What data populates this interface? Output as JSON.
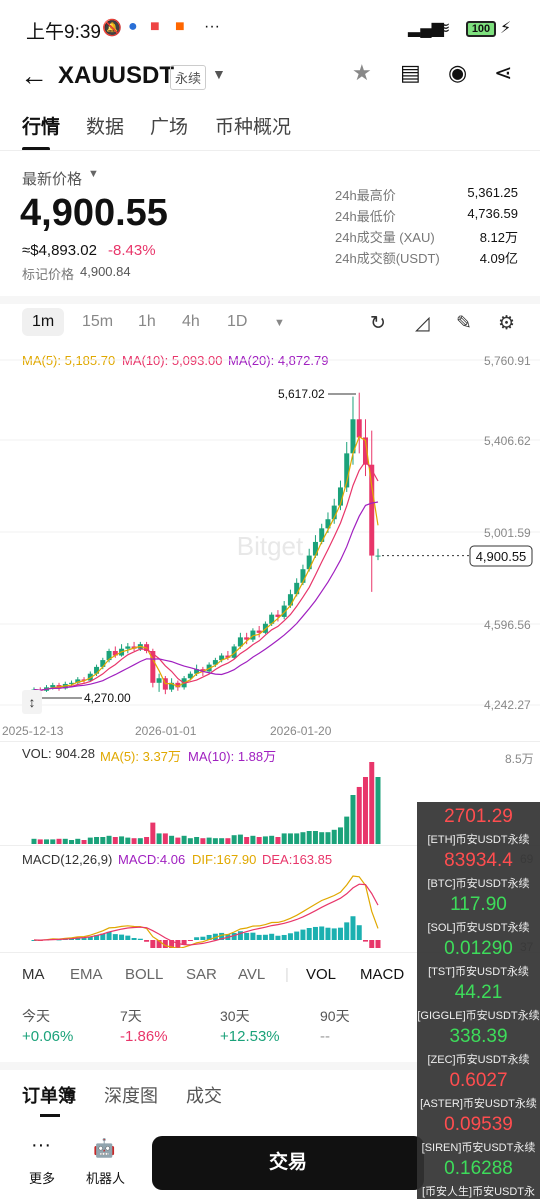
{
  "status": {
    "time": "上午9:39",
    "battery": "100"
  },
  "header": {
    "symbol": "XAUUSDT",
    "badge": "永续"
  },
  "tabs": [
    "行情",
    "数据",
    "广场",
    "币种概况"
  ],
  "price": {
    "label": "最新价格",
    "last": "4,900.55",
    "usd": "≈$4,893.02",
    "change": "-8.43%",
    "mark_label": "标记价格",
    "mark": "4,900.84"
  },
  "stats": [
    {
      "label": "24h最高价",
      "value": "5,361.25"
    },
    {
      "label": "24h最低价",
      "value": "4,736.59"
    },
    {
      "label": "24h成交量 (XAU)",
      "value": "8.12万"
    },
    {
      "label": "24h成交额(USDT)",
      "value": "4.09亿"
    }
  ],
  "timeframes": [
    "1m",
    "15m",
    "1h",
    "4h",
    "1D"
  ],
  "ma_legend": {
    "ma5": "MA(5): 5,185.70",
    "ma10": "MA(10): 5,093.00",
    "ma20": "MA(20): 4,872.79"
  },
  "chart_data": {
    "type": "candlestick",
    "y_ticks": [
      "5,760.91",
      "5,406.62",
      "5,001.59",
      "4,596.56",
      "4,242.27"
    ],
    "x_ticks": [
      "2025-12-13",
      "2026-01-01",
      "2026-01-20"
    ],
    "high_label": "5,617.02",
    "low_label": "4,270.00",
    "current_label": "4,900.55",
    "watermark": "Bitget",
    "ylim": [
      4242.27,
      5760.91
    ],
    "candles": [
      [
        4300,
        4310,
        4285,
        4320
      ],
      [
        4310,
        4305,
        4290,
        4320
      ],
      [
        4305,
        4320,
        4300,
        4330
      ],
      [
        4320,
        4330,
        4310,
        4340
      ],
      [
        4330,
        4315,
        4305,
        4340
      ],
      [
        4315,
        4335,
        4310,
        4345
      ],
      [
        4335,
        4340,
        4325,
        4350
      ],
      [
        4340,
        4355,
        4330,
        4365
      ],
      [
        4355,
        4350,
        4340,
        4365
      ],
      [
        4350,
        4380,
        4345,
        4390
      ],
      [
        4380,
        4410,
        4370,
        4420
      ],
      [
        4410,
        4440,
        4400,
        4450
      ],
      [
        4440,
        4480,
        4430,
        4490
      ],
      [
        4480,
        4460,
        4450,
        4500
      ],
      [
        4460,
        4490,
        4455,
        4510
      ],
      [
        4490,
        4500,
        4470,
        4515
      ],
      [
        4500,
        4490,
        4480,
        4520
      ],
      [
        4490,
        4510,
        4480,
        4520
      ],
      [
        4510,
        4480,
        4470,
        4520
      ],
      [
        4480,
        4340,
        4320,
        4490
      ],
      [
        4340,
        4360,
        4300,
        4380
      ],
      [
        4360,
        4310,
        4290,
        4370
      ],
      [
        4310,
        4340,
        4300,
        4360
      ],
      [
        4340,
        4320,
        4305,
        4350
      ],
      [
        4320,
        4360,
        4310,
        4370
      ],
      [
        4360,
        4380,
        4350,
        4390
      ],
      [
        4380,
        4400,
        4370,
        4420
      ],
      [
        4400,
        4390,
        4370,
        4410
      ],
      [
        4390,
        4420,
        4385,
        4430
      ],
      [
        4420,
        4440,
        4410,
        4450
      ],
      [
        4440,
        4460,
        4430,
        4470
      ],
      [
        4460,
        4450,
        4440,
        4480
      ],
      [
        4450,
        4500,
        4445,
        4510
      ],
      [
        4500,
        4540,
        4490,
        4560
      ],
      [
        4540,
        4530,
        4510,
        4560
      ],
      [
        4530,
        4570,
        4520,
        4580
      ],
      [
        4570,
        4560,
        4540,
        4590
      ],
      [
        4560,
        4600,
        4555,
        4610
      ],
      [
        4600,
        4640,
        4590,
        4650
      ],
      [
        4640,
        4630,
        4610,
        4660
      ],
      [
        4630,
        4680,
        4620,
        4700
      ],
      [
        4680,
        4730,
        4670,
        4750
      ],
      [
        4730,
        4780,
        4720,
        4800
      ],
      [
        4780,
        4840,
        4770,
        4860
      ],
      [
        4840,
        4900,
        4830,
        4930
      ],
      [
        4900,
        4960,
        4890,
        4990
      ],
      [
        4960,
        5020,
        4950,
        5040
      ],
      [
        5020,
        5060,
        5000,
        5090
      ],
      [
        5060,
        5120,
        5040,
        5150
      ],
      [
        5120,
        5200,
        5100,
        5230
      ],
      [
        5200,
        5350,
        5180,
        5400
      ],
      [
        5350,
        5500,
        5300,
        5600
      ],
      [
        5500,
        5420,
        5350,
        5617
      ],
      [
        5420,
        5300,
        5250,
        5500
      ],
      [
        5300,
        4900,
        4740,
        5450
      ],
      [
        4900,
        4900,
        4880,
        4930
      ]
    ]
  },
  "vol_legend": {
    "vol": "VOL: 904.28",
    "ma5": "MA(5): 3.37万",
    "ma10": "MA(10): 1.88万",
    "max": "8.5万"
  },
  "macd_legend": {
    "title": "MACD(12,26,9)",
    "macd": "MACD:4.06",
    "dif": "DIF:167.90",
    "dea": "DEA:163.85",
    "tick_a": "69",
    "tick_b": "37"
  },
  "indicators": [
    "MA",
    "EMA",
    "BOLL",
    "SAR",
    "AVL",
    "VOL",
    "MACD"
  ],
  "performance": [
    {
      "label": "今天",
      "value": "+0.06%"
    },
    {
      "label": "7天",
      "value": "-1.86%"
    },
    {
      "label": "30天",
      "value": "+12.53%"
    },
    {
      "label": "90天",
      "value": "--"
    }
  ],
  "orderbook_tabs": [
    "订单簿",
    "深度图",
    "成交"
  ],
  "bottom": {
    "more": "更多",
    "robot": "机器人",
    "trade": "交易"
  },
  "floating_list": [
    {
      "price": "2701.29",
      "name": "[ETH]币安USDT永续",
      "color": "#ff4d4f"
    },
    {
      "price": "83934.4",
      "name": "[BTC]币安USDT永续",
      "color": "#ff4d4f"
    },
    {
      "price": "117.90",
      "name": "[SOL]币安USDT永续",
      "color": "#3ddc5a"
    },
    {
      "price": "0.01290",
      "name": "[TST]币安USDT永续",
      "color": "#3ddc5a"
    },
    {
      "price": "44.21",
      "name": "[GIGGLE]币安USDT永续",
      "color": "#3ddc5a"
    },
    {
      "price": "338.39",
      "name": "[ZEC]币安USDT永续",
      "color": "#3ddc5a"
    },
    {
      "price": "0.6027",
      "name": "[ASTER]币安USDT永续",
      "color": "#ff4d4f"
    },
    {
      "price": "0.09539",
      "name": "[SIREN]币安USDT永续",
      "color": "#ff4d4f"
    },
    {
      "price": "0.16288",
      "name": "[币安人生]币安USDT永续",
      "color": "#3ddc5a"
    }
  ]
}
